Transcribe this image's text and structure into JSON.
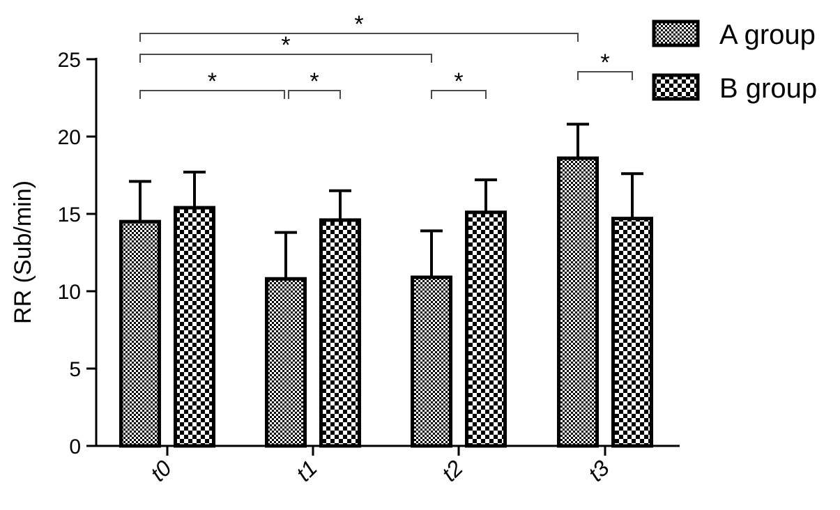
{
  "chart_data": {
    "type": "bar",
    "title": "",
    "xlabel": "",
    "ylabel": "RR (Sub/min)",
    "ylim": [
      0,
      25
    ],
    "yticks": [
      0,
      5,
      10,
      15,
      20,
      25
    ],
    "categories": [
      "t0",
      "t1",
      "t2",
      "t3"
    ],
    "series": [
      {
        "name": "A group",
        "pattern": "fine-checker",
        "values": [
          14.5,
          10.8,
          10.9,
          18.6
        ],
        "errors": [
          2.6,
          3.0,
          3.0,
          2.2
        ]
      },
      {
        "name": "B group",
        "pattern": "coarse-checker",
        "values": [
          15.4,
          14.6,
          15.1,
          14.7
        ],
        "errors": [
          2.3,
          1.9,
          2.1,
          2.9
        ]
      }
    ],
    "significance": [
      {
        "label": "*",
        "from": "t0 A group",
        "to": "t3 A group"
      },
      {
        "label": "*",
        "from": "t0 A group",
        "to": "t2 A group"
      },
      {
        "label": "*",
        "from": "t0 A group",
        "to": "t1 A group"
      },
      {
        "label": "*",
        "from": "t1 A group",
        "to": "t1 B group"
      },
      {
        "label": "*",
        "from": "t2 A group",
        "to": "t2 B group"
      },
      {
        "label": "*",
        "from": "t3 A group",
        "to": "t3 B group"
      }
    ],
    "legend": "top-right",
    "grid": false,
    "colors": {
      "ink": "#000000",
      "fill": "#ffffff",
      "bracket": "#4a4a4a"
    }
  }
}
